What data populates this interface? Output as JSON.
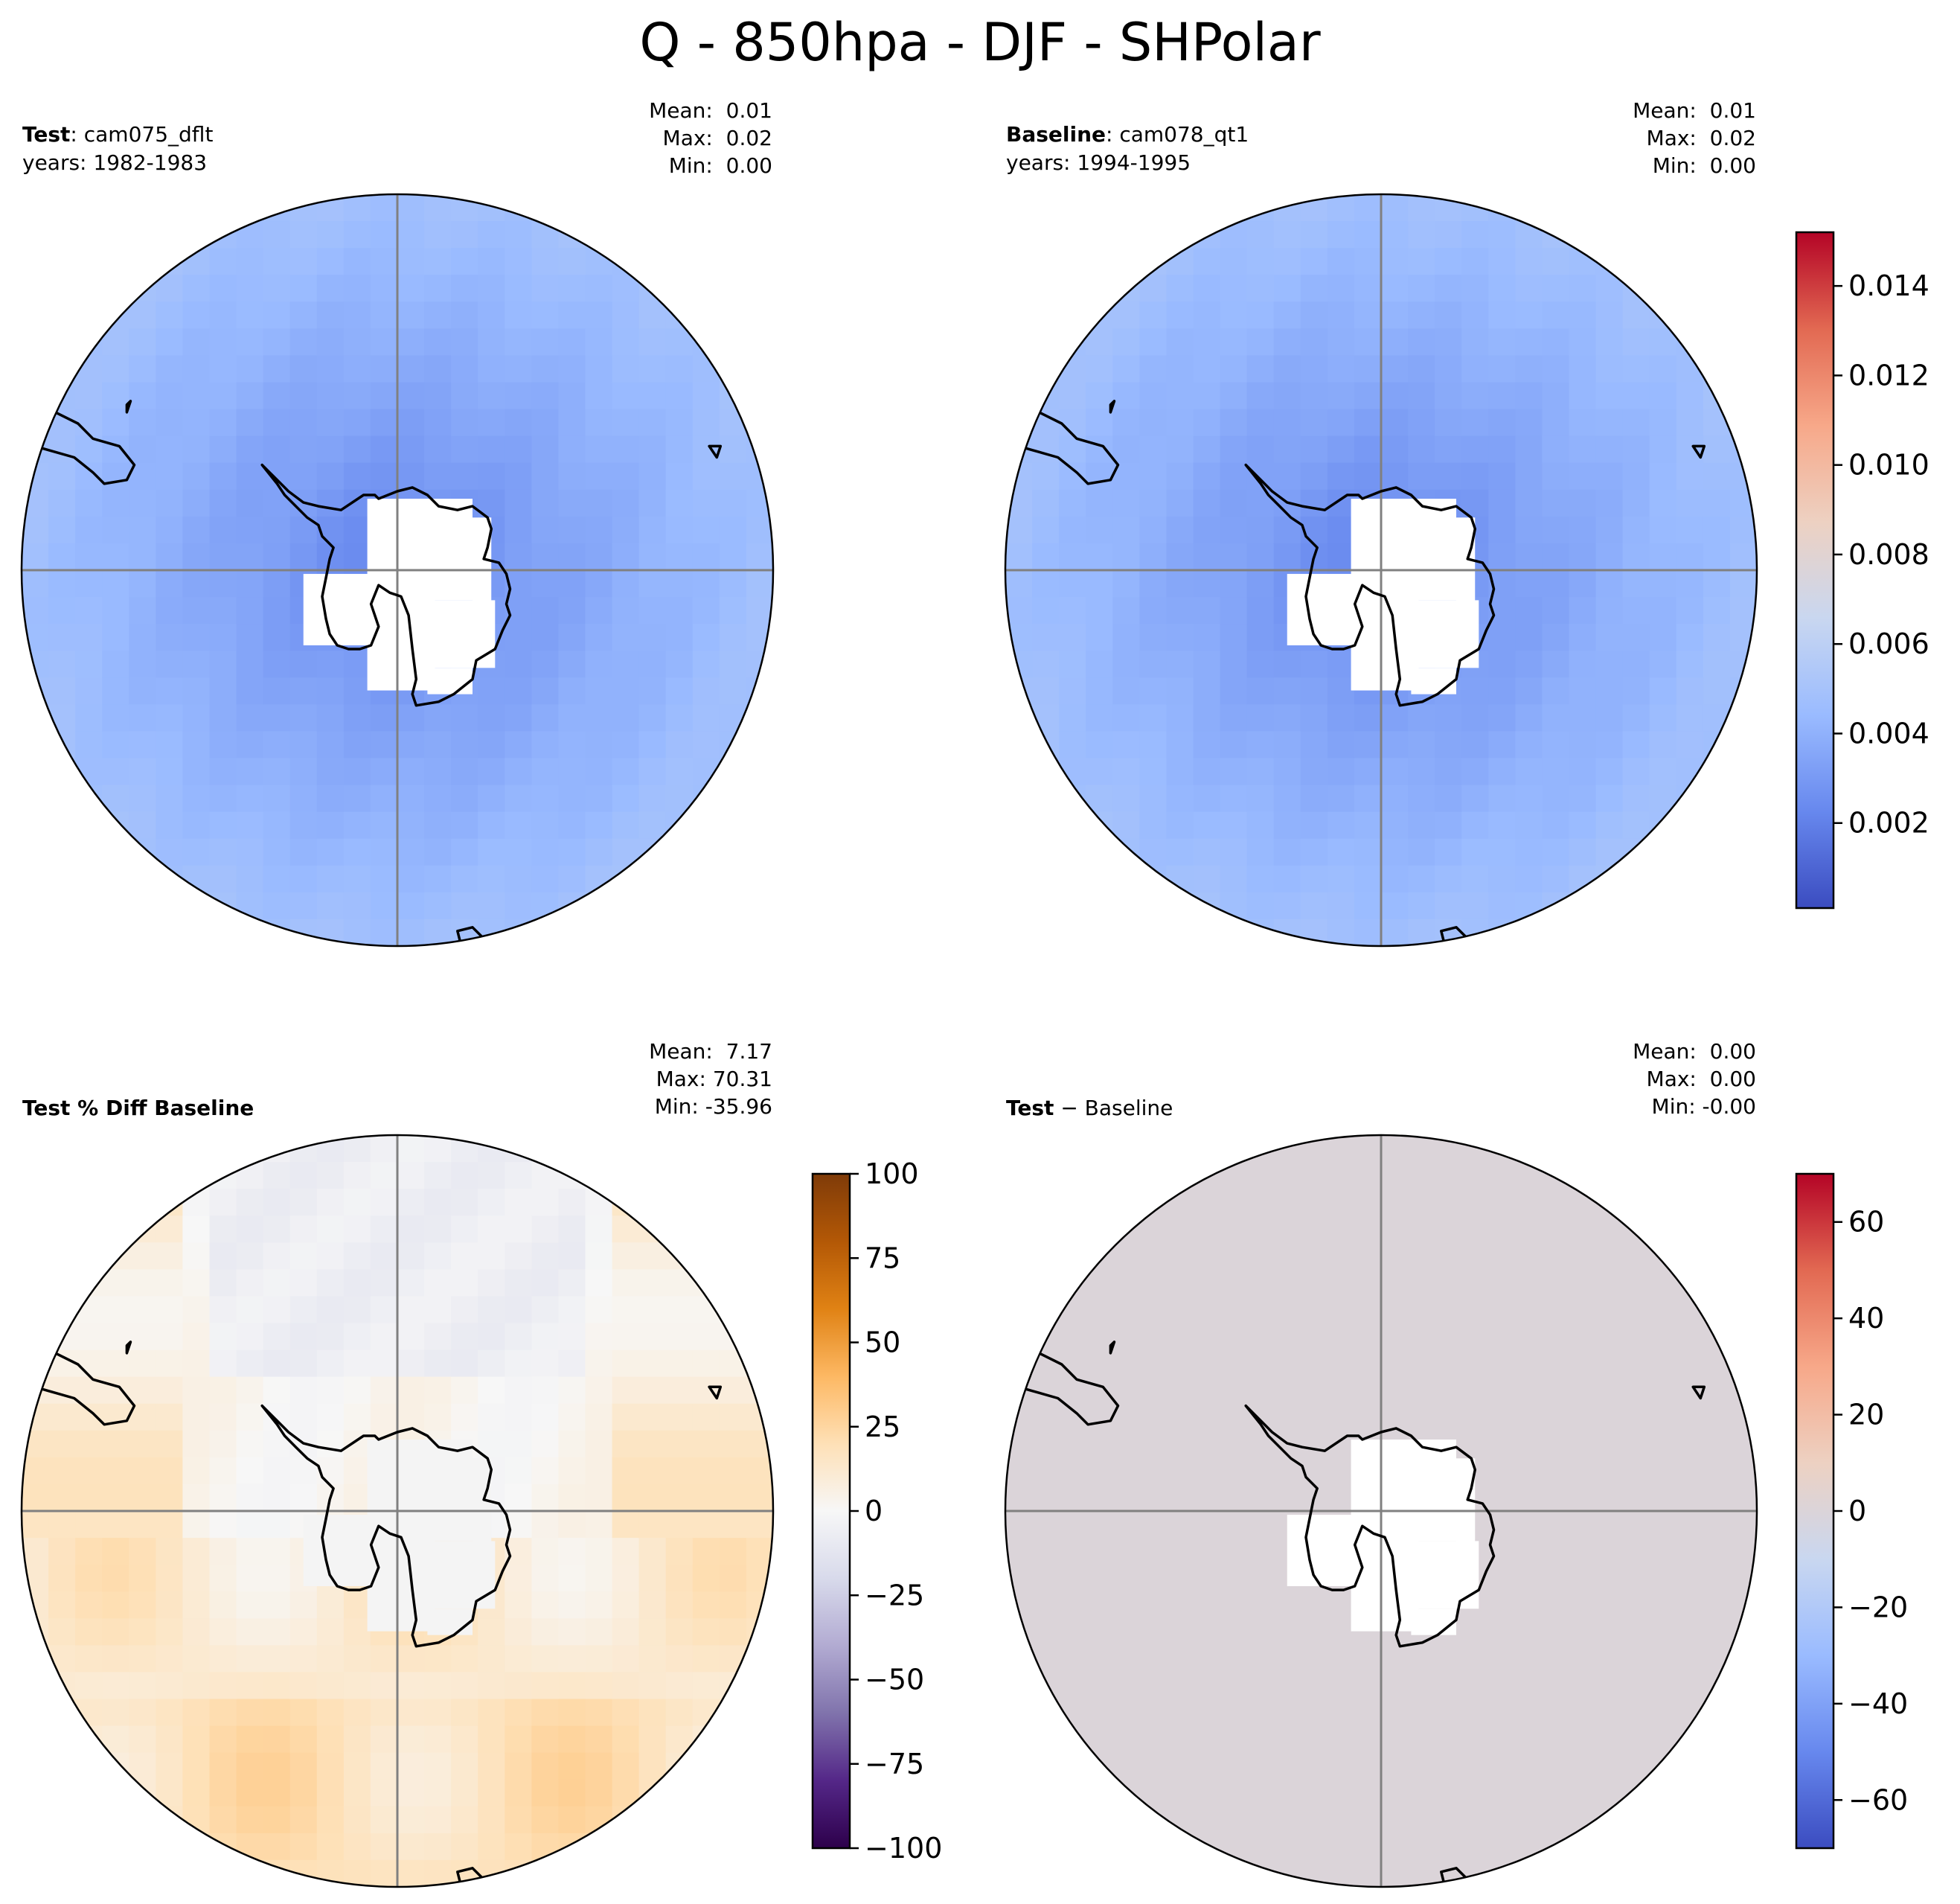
{
  "figure": {
    "title": "Q - 850hpa - DJF - SHPolar"
  },
  "colors": {
    "coolwarm": [
      "#3b4cc0",
      "#6788ee",
      "#9abbff",
      "#c9d7f0",
      "#edd1c2",
      "#f7a889",
      "#e26952",
      "#b40426"
    ],
    "puor": [
      "#2d004b",
      "#542788",
      "#8073ac",
      "#b2abd2",
      "#d8daeb",
      "#f7f7f7",
      "#fee0b6",
      "#fdb863",
      "#e08214",
      "#b35806",
      "#7f3b08"
    ],
    "land_fill": "#ffffff",
    "coast": "#000000",
    "meridian": "#808080"
  },
  "chart_data": [
    {
      "type": "heatmap",
      "projection": "south-polar-stereographic",
      "panel": "top-left",
      "title_bold": "Test",
      "title_rest": ": cam075_dflt",
      "years": "years: 1982-1983",
      "stats": {
        "mean": "Mean:  0.01",
        "max": "Max:  0.02",
        "min": "Min:  0.00"
      },
      "field": {
        "pole_value": 0.002,
        "edge_value": 0.0048,
        "land_masked": true
      },
      "colorbar": null
    },
    {
      "type": "heatmap",
      "projection": "south-polar-stereographic",
      "panel": "top-right",
      "title_bold": "Baseline",
      "title_rest": ": cam078_qt1",
      "years": "years: 1994-1995",
      "stats": {
        "mean": "Mean:  0.01",
        "max": "Max:  0.02",
        "min": "Min:  0.00"
      },
      "field": {
        "pole_value": 0.002,
        "edge_value": 0.0048,
        "land_masked": true
      },
      "colorbar": {
        "cmap": "coolwarm",
        "range": [
          0.0001,
          0.0152
        ],
        "ticks": [
          0.002,
          0.004,
          0.006,
          0.008,
          0.01,
          0.012,
          0.014
        ],
        "tick_labels": [
          "0.002",
          "0.004",
          "0.006",
          "0.008",
          "0.010",
          "0.012",
          "0.014"
        ]
      }
    },
    {
      "type": "heatmap",
      "projection": "south-polar-stereographic",
      "panel": "bottom-left",
      "title_bold": "Test % Diff Baseline",
      "title_rest": "",
      "years": "",
      "stats": {
        "mean": "Mean:  7.17",
        "max": "Max: 70.31",
        "min": "Min: -35.96"
      },
      "field": {
        "typical_range": [
          -10,
          25
        ],
        "land_value": 0
      },
      "colorbar": {
        "cmap": "puor",
        "range": [
          -100,
          100
        ],
        "ticks": [
          -100,
          -75,
          -50,
          -25,
          0,
          25,
          50,
          75,
          100
        ],
        "tick_labels": [
          "−100",
          "−75",
          "−50",
          "−25",
          "0",
          "25",
          "50",
          "75",
          "100"
        ]
      }
    },
    {
      "type": "heatmap",
      "projection": "south-polar-stereographic",
      "panel": "bottom-right",
      "title_bold": "Test",
      "title_rest": " − Baseline",
      "years": "",
      "stats": {
        "mean": "Mean:  0.00",
        "max": "Max:  0.00",
        "min": "Min: -0.00"
      },
      "field": {
        "uniform_value": 0.0,
        "land_masked": true
      },
      "colorbar": {
        "cmap": "coolwarm",
        "range": [
          -70,
          70
        ],
        "ticks": [
          -60,
          -40,
          -20,
          0,
          20,
          40,
          60
        ],
        "tick_labels": [
          "−60",
          "−40",
          "−20",
          "0",
          "20",
          "40",
          "60"
        ]
      }
    }
  ]
}
